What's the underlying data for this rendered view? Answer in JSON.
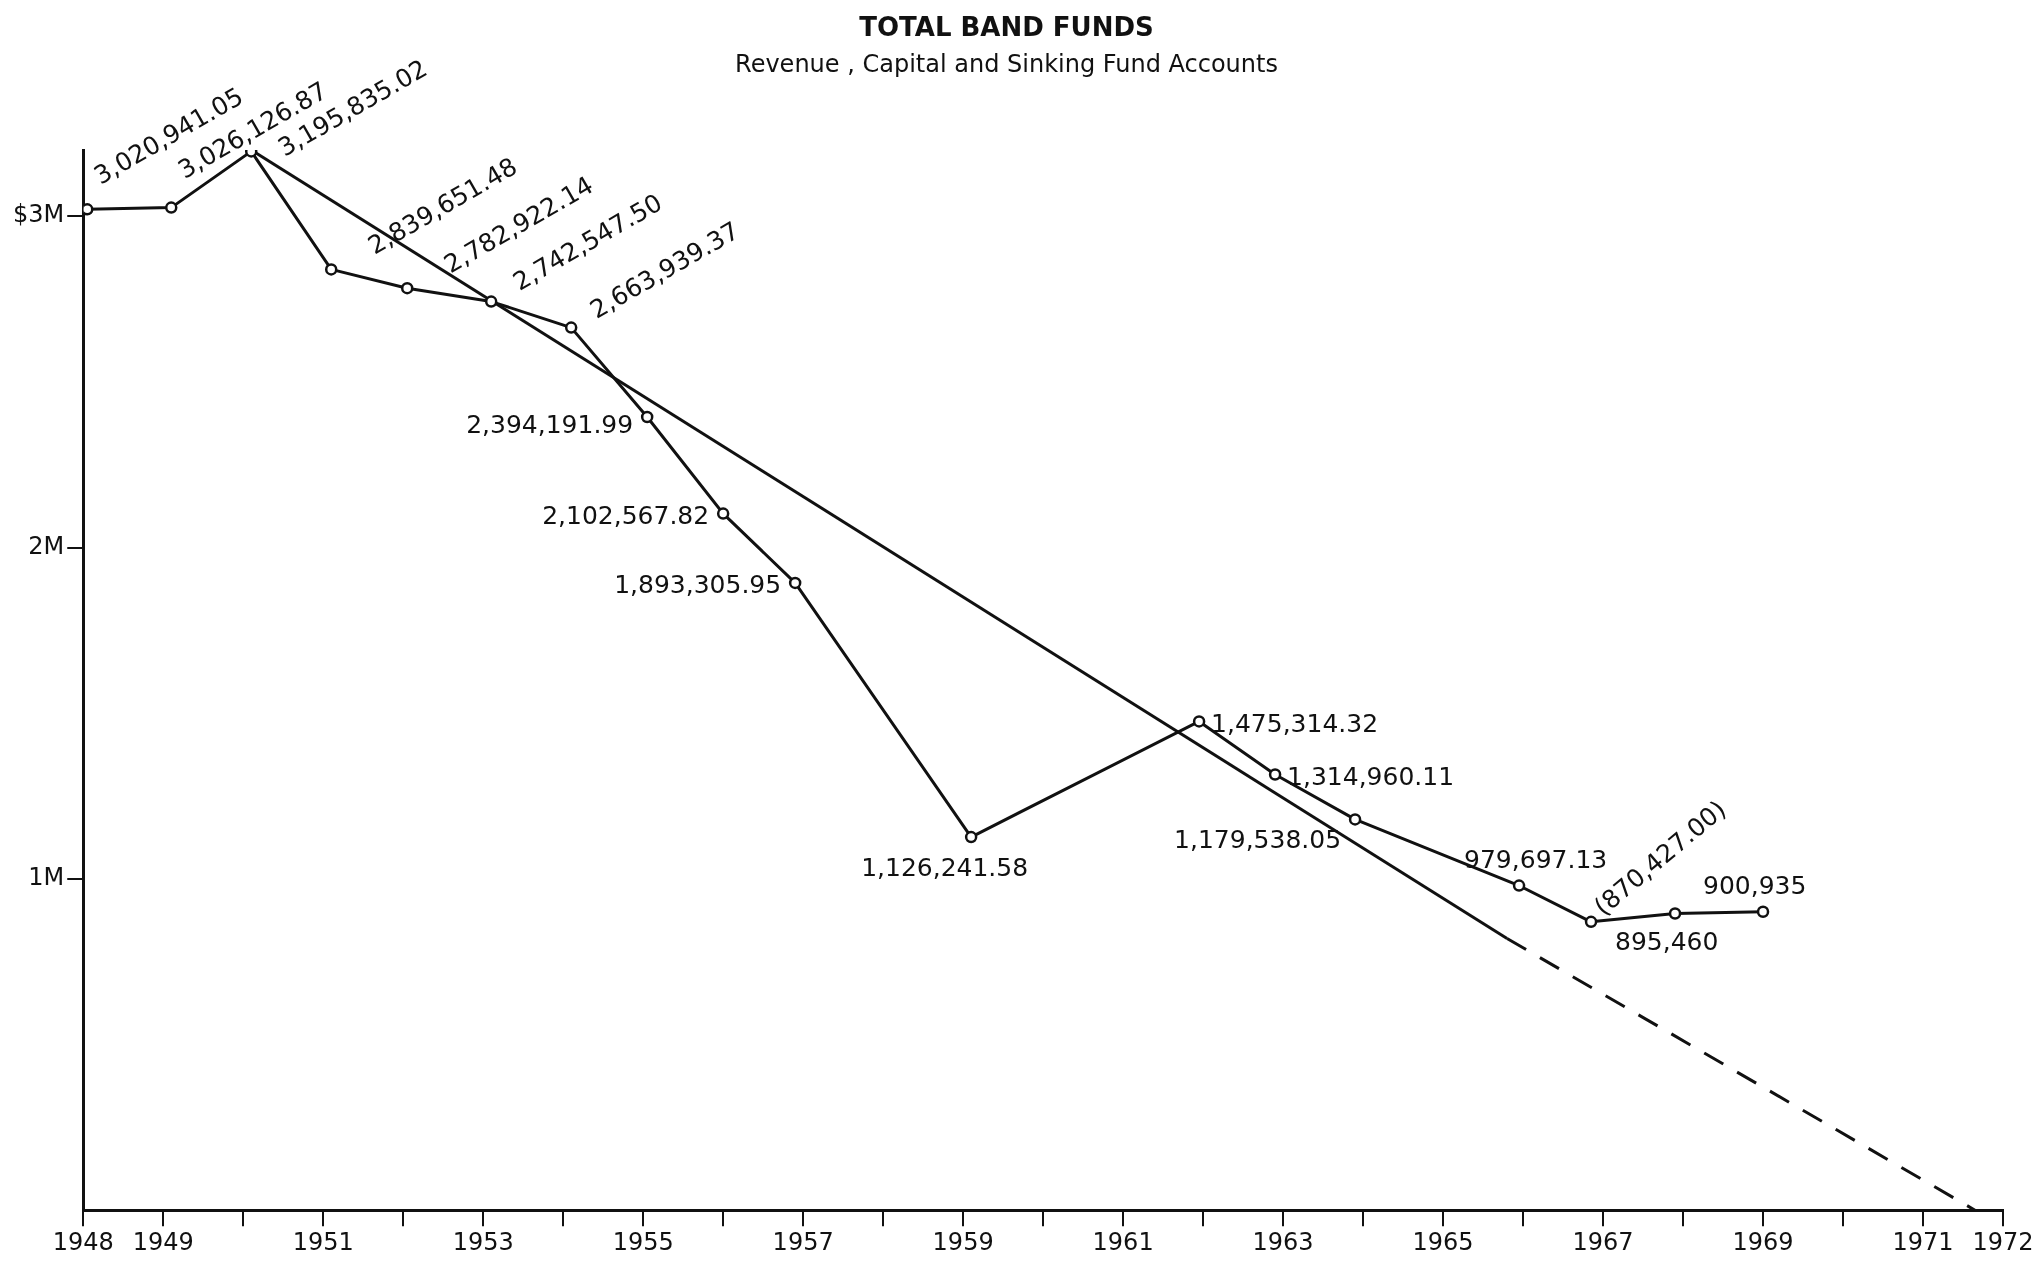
{
  "chart_data": {
    "type": "line",
    "title": "TOTAL BAND FUNDS",
    "subtitle": "Revenue , Capital and Sinking Fund Accounts",
    "xlim": [
      1948,
      1972
    ],
    "xticks": [
      1948,
      1949,
      {
        "value": 1950,
        "label": null
      },
      1951,
      {
        "value": 1952,
        "label": null
      },
      1953,
      {
        "value": 1954,
        "label": null
      },
      1955,
      {
        "value": 1956,
        "label": null
      },
      1957,
      {
        "value": 1958,
        "label": null
      },
      1959,
      {
        "value": 1960,
        "label": null
      },
      1961,
      {
        "value": 1962,
        "label": null
      },
      1963,
      {
        "value": 1964,
        "label": null
      },
      1965,
      {
        "value": 1966,
        "label": null
      },
      1967,
      {
        "value": 1968,
        "label": null
      },
      1969,
      {
        "value": 1970,
        "label": null
      },
      1971,
      1972
    ],
    "ylim": [
      0,
      3200000
    ],
    "yticks": [
      {
        "value": 1000000,
        "label": "1M"
      },
      {
        "value": 2000000,
        "label": "2M"
      },
      {
        "value": 3000000,
        "label": "$3M"
      }
    ],
    "grid": false,
    "legend": false,
    "series": [
      {
        "color": "#111111",
        "marker": "circle",
        "x": [
          1948.05,
          1949.1,
          1950.1,
          1951.1,
          1952.05,
          1953.1,
          1954.1,
          1955.05,
          1956,
          1956.9,
          1959.1,
          1961.95,
          1962.9,
          1963.9,
          1965.95,
          1966.85,
          1967.9,
          1969
        ],
        "values": [
          3020941.05,
          3026126.87,
          3195835.02,
          2839651.48,
          2782922.14,
          2742547.5,
          2663939.37,
          2394191.99,
          2102567.82,
          1893305.95,
          1126241.58,
          1475314.32,
          1314960.11,
          1179538.05,
          979697.13,
          870427,
          895460,
          900935
        ],
        "value_labels": [
          "3,020,941.05",
          "3,026,126.87",
          "3,195,835.02",
          "2,839,651.48",
          "2,782,922.14",
          "2,742,547.50",
          "2,663,939.37",
          "2,394,191.99",
          "2,102,567.82",
          "1,893,305.95",
          "1,126,241.58",
          "1,475,314.32",
          "1,314,960.11",
          "1,179,538.05",
          "979,697.13",
          "(870,427.00)",
          "895,460",
          "900,935"
        ]
      },
      {
        "type": "line",
        "color": "#111111",
        "marker": "none",
        "line_style": "solid",
        "x": [
          1950.1,
          1965.8
        ],
        "values": [
          3200000,
          820000
        ]
      },
      {
        "type": "line",
        "color": "#111111",
        "marker": "none",
        "line_style": "dashed",
        "x": [
          1965.8,
          1971.65
        ],
        "values": [
          820000,
          0
        ]
      }
    ]
  }
}
